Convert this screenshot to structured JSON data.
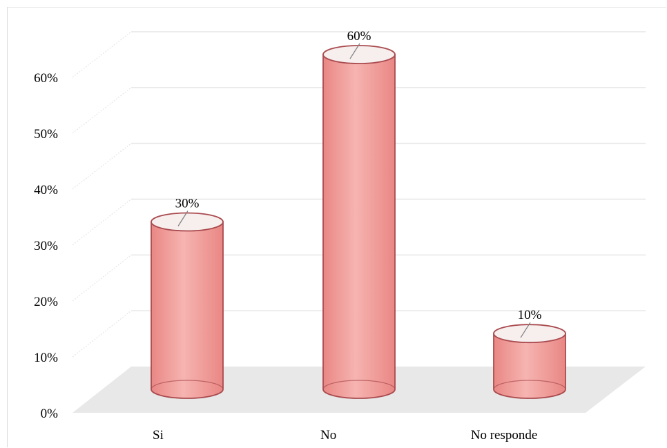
{
  "chart_data": {
    "type": "bar",
    "style": "3d-cylinder",
    "categories": [
      "Si",
      "No",
      "No responde"
    ],
    "values": [
      30,
      60,
      10
    ],
    "data_labels": [
      "30%",
      "60%",
      "10%"
    ],
    "yticks": [
      "0%",
      "10%",
      "20%",
      "30%",
      "40%",
      "50%",
      "60%"
    ],
    "ylim": [
      0,
      60
    ],
    "grid": true,
    "title": "",
    "xlabel": "",
    "ylabel": "",
    "colors": {
      "bar_fill": "#f09a98",
      "bar_edge": "#a94a4e",
      "top_fill": "#f7eeee",
      "floor": "#e8e8e8",
      "grid": "#e6e6e6"
    }
  }
}
